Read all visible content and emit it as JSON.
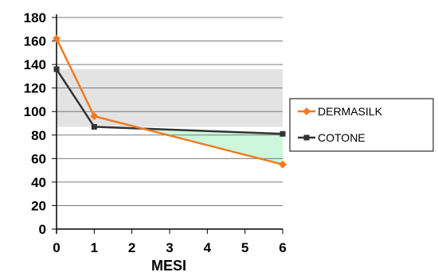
{
  "chart_data": {
    "type": "line",
    "title": "",
    "xlabel": "MESI",
    "ylabel": "",
    "x": [
      0,
      1,
      6
    ],
    "x_ticks": [
      0,
      1,
      2,
      3,
      4,
      5,
      6
    ],
    "y_ticks": [
      0,
      20,
      40,
      60,
      80,
      100,
      120,
      140,
      160,
      180
    ],
    "xlim": [
      0,
      6
    ],
    "ylim": [
      0,
      180
    ],
    "grid": "horizontal",
    "legend_position": "right",
    "series": [
      {
        "name": "DERMASILK",
        "color": "#F57A1E",
        "marker": "diamond",
        "x": [
          0,
          1,
          6
        ],
        "values": [
          162,
          96,
          55
        ]
      },
      {
        "name": "COTONE",
        "color": "#333333",
        "marker": "square",
        "x": [
          0,
          1,
          6
        ],
        "values": [
          136,
          87,
          81
        ]
      }
    ],
    "shaded_regions": [
      {
        "description": "grey band",
        "color": "#E3E3E3",
        "y_range": [
          87,
          136
        ],
        "x_range": [
          0,
          6
        ]
      },
      {
        "description": "green area between COTONE and DERMASILK",
        "color": "#CCF7DD",
        "x_range": [
          2.4,
          6
        ]
      }
    ]
  }
}
